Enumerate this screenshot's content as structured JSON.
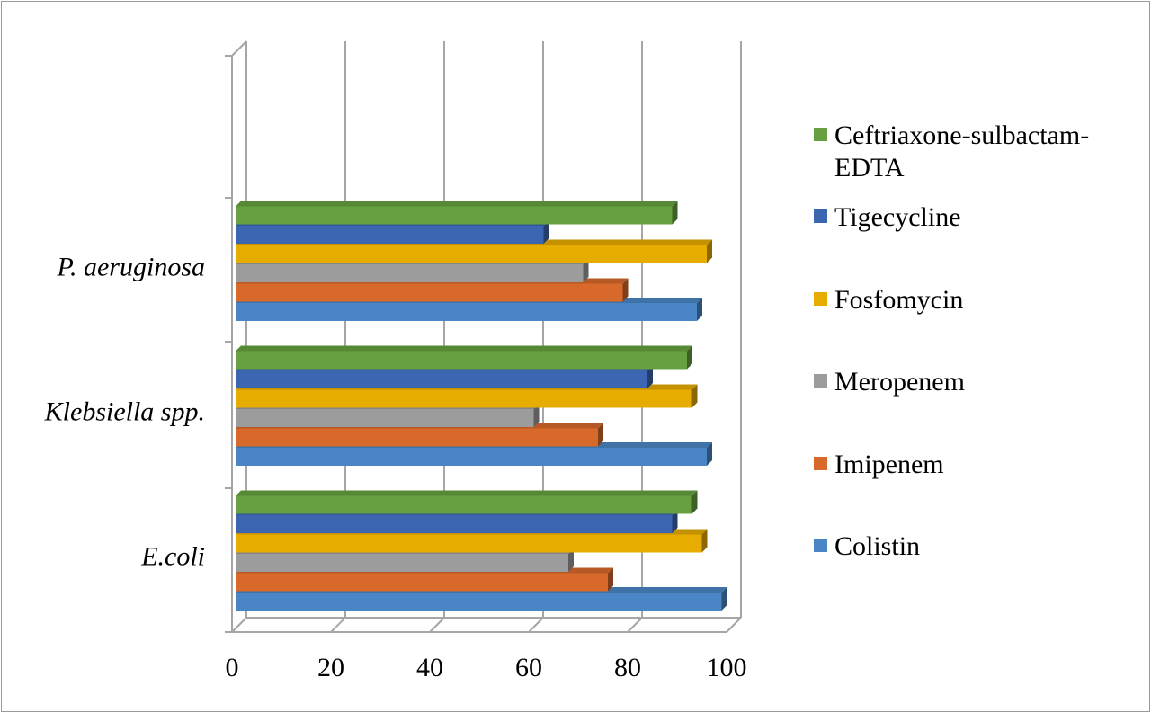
{
  "chart_data": {
    "type": "bar",
    "orientation": "horizontal",
    "style": "3d",
    "title": "",
    "xlabel": "",
    "ylabel": "",
    "xlim": [
      0,
      100
    ],
    "x_ticks": [
      "0",
      "20",
      "40",
      "60",
      "80",
      "100"
    ],
    "grid": true,
    "legend_position": "right",
    "categories": [
      "E.coli",
      "Klebsiella spp.",
      "P. aeruginosa"
    ],
    "series": [
      {
        "name": "Colistin",
        "color": "#4A86C5",
        "values": [
          99,
          96,
          94
        ]
      },
      {
        "name": "Imipenem",
        "color": "#D7692A",
        "values": [
          76,
          74,
          79
        ]
      },
      {
        "name": "Meropenem",
        "color": "#9C9C9C",
        "values": [
          68,
          61,
          71
        ]
      },
      {
        "name": "Fosfomycin",
        "color": "#E6AC00",
        "values": [
          95,
          93,
          96
        ]
      },
      {
        "name": "Tigecycline",
        "color": "#3C66B1",
        "values": [
          89,
          84,
          63
        ]
      },
      {
        "name": "Ceftriaxone-sulbactam-EDTA",
        "color": "#66A040",
        "values": [
          93,
          92,
          89
        ]
      }
    ]
  }
}
